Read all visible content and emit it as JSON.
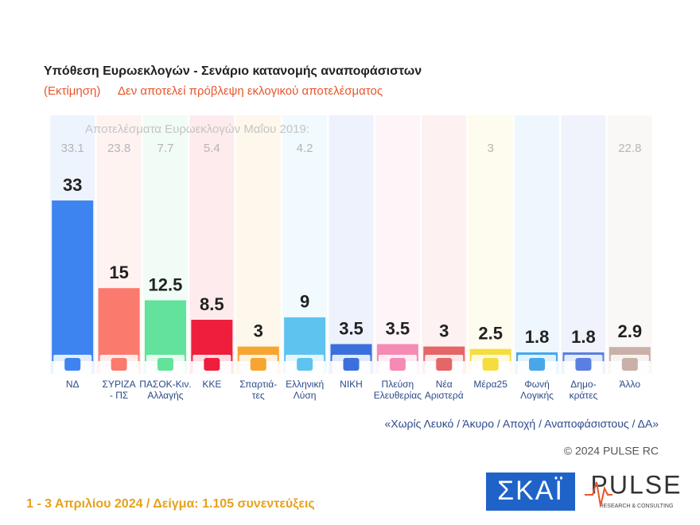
{
  "chart_data": {
    "type": "bar",
    "title": "Υπόθεση Ευρωεκλογών - Σενάριο κατανομής αναποφάσιστων",
    "subtitle_note": "(Εκτίμηση)",
    "subtitle": "Δεν αποτελεί πρόβλεψη εκλογικού αποτελέσματος",
    "categories": [
      [
        "ΝΔ"
      ],
      [
        "ΣΥΡΙΖΑ",
        "- ΠΣ"
      ],
      [
        "ΠΑΣΟΚ-Κιν.",
        "Αλλαγής"
      ],
      [
        "ΚΚΕ"
      ],
      [
        "Σπαρτιά-",
        "τες"
      ],
      [
        "Ελληνική",
        "Λύση"
      ],
      [
        "ΝΙΚΗ"
      ],
      [
        "Πλεύση",
        "Ελευθερίας"
      ],
      [
        "Νέα",
        "Αριστερά"
      ],
      [
        "Μέρα25"
      ],
      [
        "Φωνή",
        "Λογικής"
      ],
      [
        "Δημο-",
        "κράτες"
      ],
      [
        "Άλλο"
      ]
    ],
    "values": [
      33,
      15,
      12.5,
      8.5,
      3,
      9,
      3.5,
      3.5,
      3,
      2.5,
      1.8,
      1.8,
      2.9
    ],
    "colors": [
      "#3d84f0",
      "#fa7a6e",
      "#62e29a",
      "#ef1e3c",
      "#f7a531",
      "#5fc3f0",
      "#3b70dc",
      "#f58bb5",
      "#e46666",
      "#f6dd3e",
      "#47a7ea",
      "#5b7fe0",
      "#c9b0a8"
    ],
    "previous_label": "Αποτελέσματα Ευρωεκλογών Μαΐου 2019:",
    "previous_values": [
      33.1,
      23.8,
      7.7,
      5.4,
      null,
      4.2,
      null,
      null,
      null,
      3,
      null,
      null,
      22.8
    ],
    "ylim": [
      0,
      50
    ],
    "footnote": "«Χωρίς Λευκό / Άκυρο / Αποχή / Αναποφάσιστους / ΔΑ»",
    "copyright": "© 2024 PULSE RC",
    "fieldwork": "1 - 3  Απριλίου 2024  /  Δείγμα:  1.105 συνεντεύξεις",
    "logo_skai": "ΣΚΑΪ",
    "logo_pulse": "PULSE",
    "logo_pulse_sub": "RESEARCH & CONSULTING"
  }
}
